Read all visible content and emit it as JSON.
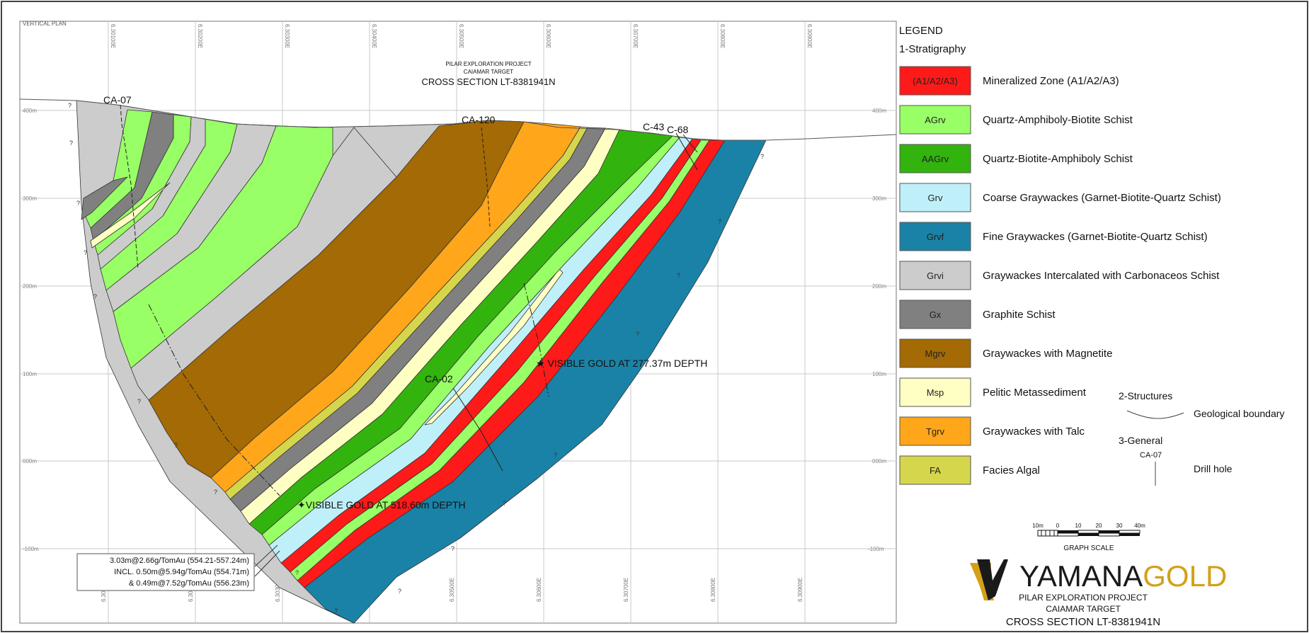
{
  "section": {
    "vertical_plan_label": "VERTICAL PLAN",
    "header_lines": [
      "PILAR EXPLORATION PROJECT",
      "CAIAMAR TARGET",
      "CROSS SECTION LT-8381941N"
    ],
    "elevation_labels": [
      "400m",
      "300m",
      "200m",
      "100m",
      "000m",
      "-100m"
    ],
    "easting_labels": [
      "6.30100E",
      "6.30200E",
      "6.30300E",
      "6.30400E",
      "6.30500E",
      "6.30600E",
      "6.30700E",
      "6.30800E",
      "6.30900E"
    ],
    "drill_holes": [
      "CA-07",
      "CA-120",
      "C-43",
      "C-68",
      "CA-02"
    ],
    "annotations": {
      "gold_upper": "VISIBLE GOLD AT 277.37m DEPTH",
      "gold_lower": "VISIBLE GOLD AT 518.60m DEPTH",
      "assay_box": [
        "3.03m@2.66g/TomAu (554.21-557.24m)",
        "INCL. 0.50m@5.94g/TomAu (554.71m)",
        "& 0.49m@7.52g/TomAu (556.23m)"
      ],
      "uncertain_mark": "?"
    }
  },
  "legend": {
    "title": "LEGEND",
    "stratigraphy_heading": "1-Stratigraphy",
    "units": [
      {
        "code": "(A1/A2/A3)",
        "label": "Mineralized Zone (A1/A2/A3)",
        "color": "#ff1a1a",
        "code_color": "#222222"
      },
      {
        "code": "AGrv",
        "label": "Quartz-Amphiboly-Biotite Schist",
        "color": "#99ff66",
        "code_color": "#222222"
      },
      {
        "code": "AAGrv",
        "label": "Quartz-Biotite-Amphiboly Schist",
        "color": "#33b30d",
        "code_color": "#222222"
      },
      {
        "code": "Grv",
        "label": "Coarse Graywackes (Garnet-Biotite-Quartz Schist)",
        "color": "#bff0fa",
        "code_color": "#222222"
      },
      {
        "code": "Grvf",
        "label": "Fine Graywackes (Garnet-Biotite-Quartz Schist)",
        "color": "#1a82a6",
        "code_color": "#222222"
      },
      {
        "code": "Grvi",
        "label": "Graywackes Intercalated with Carbonaceos Schist",
        "color": "#cccccc",
        "code_color": "#222222"
      },
      {
        "code": "Gx",
        "label": "Graphite Schist",
        "color": "#808080",
        "code_color": "#222222"
      },
      {
        "code": "Mgrv",
        "label": "Graywackes with Magnetite",
        "color": "#a36a05",
        "code_color": "#222222"
      },
      {
        "code": "Msp",
        "label": "Pelitic Metassediment",
        "color": "#ffffc4",
        "code_color": "#222222"
      },
      {
        "code": "Tgrv",
        "label": "Graywackes with Talc",
        "color": "#ffa61a",
        "code_color": "#222222"
      },
      {
        "code": "FA",
        "label": "Facies Algal",
        "color": "#d6d64d",
        "code_color": "#222222"
      }
    ],
    "structures_heading": "2-Structures",
    "structures_label": "Geological boundary",
    "general_heading": "3-General",
    "drill_hole_example": "CA-07",
    "drill_hole_label": "Drill hole"
  },
  "scale_bar": {
    "ticks": [
      "10m",
      "0",
      "10",
      "20",
      "30",
      "40m"
    ],
    "caption": "GRAPH SCALE"
  },
  "branding": {
    "logo_text_1": "YAMANA",
    "logo_text_2": "GOLD",
    "logo_color_1": "#1a1a1a",
    "logo_color_2": "#d4a017",
    "lines": [
      "PILAR EXPLORATION PROJECT",
      "CAIAMAR TARGET",
      "CROSS SECTION LT-8381941N"
    ]
  }
}
